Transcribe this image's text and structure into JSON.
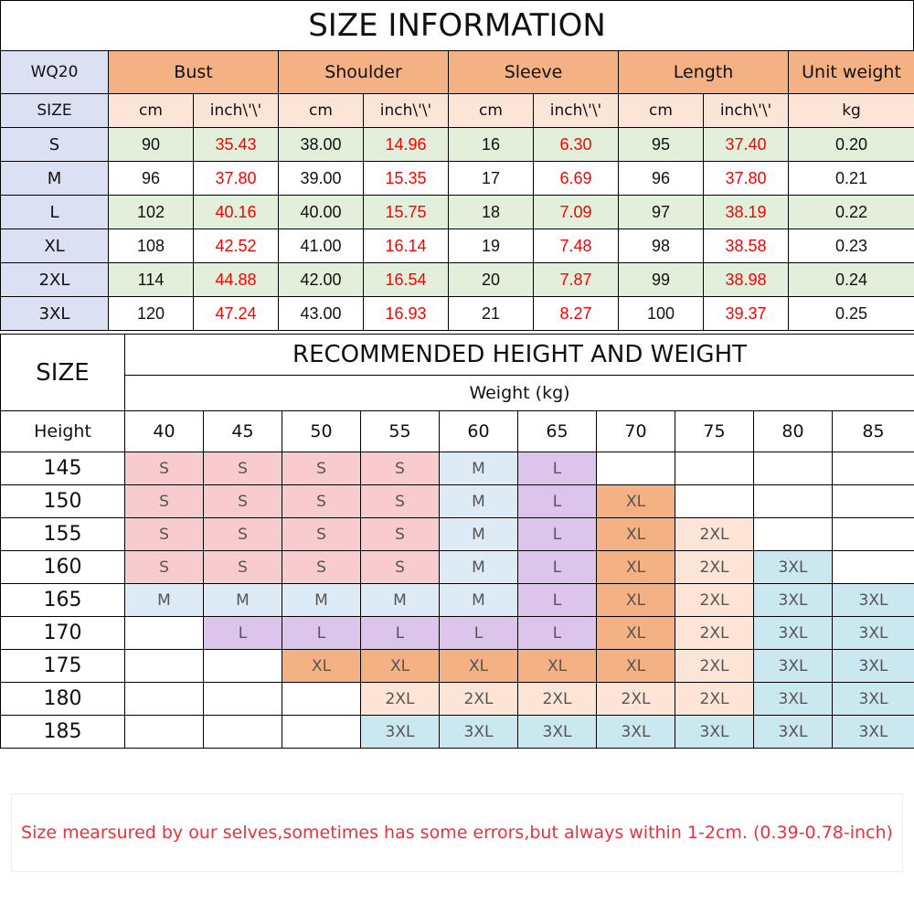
{
  "title": "SIZE INFORMATION",
  "size_table": {
    "model": "WQ20",
    "size_label": "SIZE",
    "measures": [
      "Bust",
      "Shoulder",
      "Sleeve",
      "Length"
    ],
    "unit_weight_label": "Unit weight",
    "units": [
      "cm",
      "inch\\'\\'"
    ],
    "weight_unit": "kg",
    "rows": [
      {
        "size": "S",
        "bust_cm": "90",
        "bust_in": "35.43",
        "shoulder_cm": "38.00",
        "shoulder_in": "14.96",
        "sleeve_cm": "16",
        "sleeve_in": "6.30",
        "length_cm": "95",
        "length_in": "37.40",
        "weight": "0.20"
      },
      {
        "size": "M",
        "bust_cm": "96",
        "bust_in": "37.80",
        "shoulder_cm": "39.00",
        "shoulder_in": "15.35",
        "sleeve_cm": "17",
        "sleeve_in": "6.69",
        "length_cm": "96",
        "length_in": "37.80",
        "weight": "0.21"
      },
      {
        "size": "L",
        "bust_cm": "102",
        "bust_in": "40.16",
        "shoulder_cm": "40.00",
        "shoulder_in": "15.75",
        "sleeve_cm": "18",
        "sleeve_in": "7.09",
        "length_cm": "97",
        "length_in": "38.19",
        "weight": "0.22"
      },
      {
        "size": "XL",
        "bust_cm": "108",
        "bust_in": "42.52",
        "shoulder_cm": "41.00",
        "shoulder_in": "16.14",
        "sleeve_cm": "19",
        "sleeve_in": "7.48",
        "length_cm": "98",
        "length_in": "38.58",
        "weight": "0.23"
      },
      {
        "size": "2XL",
        "bust_cm": "114",
        "bust_in": "44.88",
        "shoulder_cm": "42.00",
        "shoulder_in": "16.54",
        "sleeve_cm": "20",
        "sleeve_in": "7.87",
        "length_cm": "99",
        "length_in": "38.98",
        "weight": "0.24"
      },
      {
        "size": "3XL",
        "bust_cm": "120",
        "bust_in": "47.24",
        "shoulder_cm": "43.00",
        "shoulder_in": "16.93",
        "sleeve_cm": "21",
        "sleeve_in": "8.27",
        "length_cm": "100",
        "length_in": "39.37",
        "weight": "0.25"
      }
    ]
  },
  "recommend": {
    "size_label": "SIZE",
    "title": "RECOMMENDED HEIGHT AND WEIGHT",
    "weight_label": "Weight (kg)",
    "height_label": "Height",
    "weights": [
      "40",
      "45",
      "50",
      "55",
      "60",
      "65",
      "70",
      "75",
      "80",
      "85"
    ],
    "rows": [
      {
        "height": "145",
        "sizes": [
          "S",
          "S",
          "S",
          "S",
          "M",
          "L",
          "",
          "",
          "",
          ""
        ]
      },
      {
        "height": "150",
        "sizes": [
          "S",
          "S",
          "S",
          "S",
          "M",
          "L",
          "XL",
          "",
          "",
          ""
        ]
      },
      {
        "height": "155",
        "sizes": [
          "S",
          "S",
          "S",
          "S",
          "M",
          "L",
          "XL",
          "2XL",
          "",
          ""
        ]
      },
      {
        "height": "160",
        "sizes": [
          "S",
          "S",
          "S",
          "S",
          "M",
          "L",
          "XL",
          "2XL",
          "3XL",
          ""
        ]
      },
      {
        "height": "165",
        "sizes": [
          "M",
          "M",
          "M",
          "M",
          "M",
          "L",
          "XL",
          "2XL",
          "3XL",
          "3XL"
        ]
      },
      {
        "height": "170",
        "sizes": [
          "",
          "L",
          "L",
          "L",
          "L",
          "L",
          "XL",
          "2XL",
          "3XL",
          "3XL"
        ]
      },
      {
        "height": "175",
        "sizes": [
          "",
          "",
          "XL",
          "XL",
          "XL",
          "XL",
          "XL",
          "2XL",
          "3XL",
          "3XL"
        ]
      },
      {
        "height": "180",
        "sizes": [
          "",
          "",
          "",
          "2XL",
          "2XL",
          "2XL",
          "2XL",
          "2XL",
          "3XL",
          "3XL"
        ]
      },
      {
        "height": "185",
        "sizes": [
          "",
          "",
          "",
          "3XL",
          "3XL",
          "3XL",
          "3XL",
          "3XL",
          "3XL",
          "3XL"
        ]
      }
    ]
  },
  "colors": {
    "size_col": "#dbe0f3",
    "header_orange": "#f4b183",
    "unit_peach": "#fce4d6",
    "row_green": "#e2efda",
    "inch_red": "#ff0000",
    "S": "#f8cbcf",
    "M": "#ddebf7",
    "L": "#dcc4ea",
    "XL": "#f4b183",
    "2XL": "#fce4d6",
    "3XL": "#c9e8f0"
  },
  "note": "Size mearsured by our selves,sometimes has some errors,but always within 1-2cm.  (0.39-0.78-inch)"
}
